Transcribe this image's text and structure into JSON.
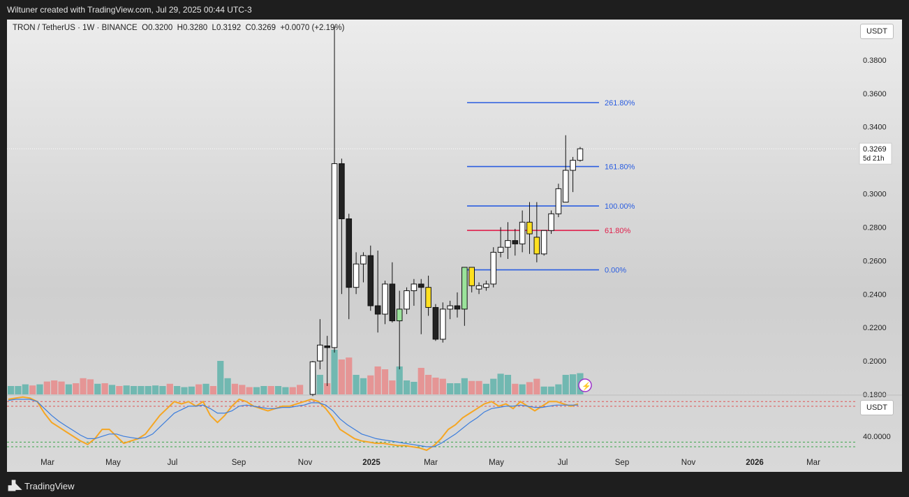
{
  "header": {
    "attribution": "Wiltuner created with TradingView.com, Jul 29, 2025 00:44 UTC-3"
  },
  "legend": {
    "symbol": "TRON / TetherUS · 1W · BINANCE",
    "open_label": "O",
    "open": "0.3200",
    "high_label": "H",
    "high": "0.3280",
    "low_label": "L",
    "low": "0.3192",
    "close_label": "C",
    "close": "0.3269",
    "change": "+0.0070 (+2.19%)"
  },
  "price_axis": {
    "currency": "USDT",
    "last_price": "0.3269",
    "countdown": "5d 21h"
  },
  "rsi_axis": {
    "currency": "USDT",
    "tick": "40.0000"
  },
  "footer": {
    "brand": "TradingView"
  },
  "colors": {
    "bull": "#ffffff",
    "bear": "#222222",
    "highlight_bull_yellow": "#ffe020",
    "highlight_bull_green": "#9be39b",
    "vol_up": "#5fb3aa",
    "vol_down": "#e88a8a",
    "fib_blue": "#2a5de0",
    "fib_red": "#e0204c",
    "rsi": "#f5a623",
    "rsi_ma": "#3b7ddd"
  },
  "chart_data": [
    {
      "type": "candlestick",
      "title": "TRON / TetherUS · 1W · BINANCE",
      "y_range": [
        0.18,
        0.395
      ],
      "y_ticks": [
        "0.3800",
        "0.3600",
        "0.3400",
        "0.3200",
        "0.3000",
        "0.2800",
        "0.2600",
        "0.2400",
        "0.2200",
        "0.2000",
        "0.1800"
      ],
      "x_labels": [
        "Mar",
        "May",
        "Jul",
        "Sep",
        "Nov",
        "2025",
        "Mar",
        "May",
        "Jul",
        "Sep",
        "Nov",
        "2026",
        "Mar"
      ],
      "x_label_bold": [
        "2025",
        "2026"
      ],
      "first_week": "2024-10-21",
      "candles": [
        {
          "o": 0.18,
          "h": 0.2,
          "l": 0.179,
          "c": 0.1995,
          "style": "bull"
        },
        {
          "o": 0.2,
          "h": 0.225,
          "l": 0.195,
          "c": 0.2095,
          "style": "bull"
        },
        {
          "o": 0.209,
          "h": 0.215,
          "l": 0.185,
          "c": 0.208,
          "style": "bear"
        },
        {
          "o": 0.208,
          "h": 0.4,
          "l": 0.205,
          "c": 0.318,
          "style": "bull"
        },
        {
          "o": 0.318,
          "h": 0.321,
          "l": 0.24,
          "c": 0.285,
          "style": "bear"
        },
        {
          "o": 0.285,
          "h": 0.288,
          "l": 0.225,
          "c": 0.244,
          "style": "bear"
        },
        {
          "o": 0.244,
          "h": 0.265,
          "l": 0.24,
          "c": 0.258,
          "style": "bull"
        },
        {
          "o": 0.258,
          "h": 0.265,
          "l": 0.247,
          "c": 0.263,
          "style": "bull"
        },
        {
          "o": 0.263,
          "h": 0.269,
          "l": 0.23,
          "c": 0.233,
          "style": "bear"
        },
        {
          "o": 0.233,
          "h": 0.266,
          "l": 0.217,
          "c": 0.228,
          "style": "bear"
        },
        {
          "o": 0.228,
          "h": 0.248,
          "l": 0.222,
          "c": 0.246,
          "style": "bull"
        },
        {
          "o": 0.246,
          "h": 0.259,
          "l": 0.223,
          "c": 0.224,
          "style": "bear"
        },
        {
          "o": 0.224,
          "h": 0.242,
          "l": 0.195,
          "c": 0.231,
          "style": "green"
        },
        {
          "o": 0.231,
          "h": 0.244,
          "l": 0.228,
          "c": 0.242,
          "style": "bull"
        },
        {
          "o": 0.242,
          "h": 0.249,
          "l": 0.233,
          "c": 0.246,
          "style": "bull"
        },
        {
          "o": 0.246,
          "h": 0.249,
          "l": 0.216,
          "c": 0.244,
          "style": "bear"
        },
        {
          "o": 0.244,
          "h": 0.251,
          "l": 0.227,
          "c": 0.232,
          "style": "yellow"
        },
        {
          "o": 0.232,
          "h": 0.234,
          "l": 0.212,
          "c": 0.213,
          "style": "bear"
        },
        {
          "o": 0.213,
          "h": 0.235,
          "l": 0.211,
          "c": 0.231,
          "style": "bull"
        },
        {
          "o": 0.231,
          "h": 0.236,
          "l": 0.225,
          "c": 0.233,
          "style": "bull"
        },
        {
          "o": 0.233,
          "h": 0.241,
          "l": 0.226,
          "c": 0.231,
          "style": "bear"
        },
        {
          "o": 0.231,
          "h": 0.256,
          "l": 0.221,
          "c": 0.256,
          "style": "green"
        },
        {
          "o": 0.245,
          "h": 0.256,
          "l": 0.241,
          "c": 0.256,
          "style": "yellow"
        },
        {
          "o": 0.243,
          "h": 0.247,
          "l": 0.24,
          "c": 0.245,
          "style": "bull"
        },
        {
          "o": 0.244,
          "h": 0.248,
          "l": 0.242,
          "c": 0.246,
          "style": "bull"
        },
        {
          "o": 0.246,
          "h": 0.268,
          "l": 0.244,
          "c": 0.265,
          "style": "bull"
        },
        {
          "o": 0.265,
          "h": 0.28,
          "l": 0.262,
          "c": 0.268,
          "style": "bull"
        },
        {
          "o": 0.268,
          "h": 0.283,
          "l": 0.261,
          "c": 0.272,
          "style": "bull"
        },
        {
          "o": 0.272,
          "h": 0.279,
          "l": 0.263,
          "c": 0.27,
          "style": "bear"
        },
        {
          "o": 0.27,
          "h": 0.29,
          "l": 0.265,
          "c": 0.283,
          "style": "bull"
        },
        {
          "o": 0.276,
          "h": 0.295,
          "l": 0.264,
          "c": 0.283,
          "style": "yellow"
        },
        {
          "o": 0.264,
          "h": 0.295,
          "l": 0.259,
          "c": 0.274,
          "style": "yellow"
        },
        {
          "o": 0.264,
          "h": 0.278,
          "l": 0.263,
          "c": 0.278,
          "style": "bull"
        },
        {
          "o": 0.278,
          "h": 0.29,
          "l": 0.276,
          "c": 0.288,
          "style": "bull"
        },
        {
          "o": 0.288,
          "h": 0.306,
          "l": 0.286,
          "c": 0.303,
          "style": "bull"
        },
        {
          "o": 0.295,
          "h": 0.335,
          "l": 0.296,
          "c": 0.314,
          "style": "bull"
        },
        {
          "o": 0.314,
          "h": 0.322,
          "l": 0.301,
          "c": 0.32,
          "style": "bull"
        },
        {
          "o": 0.32,
          "h": 0.328,
          "l": 0.3192,
          "c": 0.3269,
          "style": "bull"
        }
      ],
      "volume_left": [
        {
          "v": 0.3,
          "up": true
        },
        {
          "v": 0.3,
          "up": true
        },
        {
          "v": 0.36,
          "up": true
        },
        {
          "v": 0.32,
          "up": false
        },
        {
          "v": 0.36,
          "up": true
        },
        {
          "v": 0.46,
          "up": false
        },
        {
          "v": 0.5,
          "up": false
        },
        {
          "v": 0.46,
          "up": false
        },
        {
          "v": 0.36,
          "up": true
        },
        {
          "v": 0.4,
          "up": false
        },
        {
          "v": 0.58,
          "up": false
        },
        {
          "v": 0.54,
          "up": false
        },
        {
          "v": 0.38,
          "up": true
        },
        {
          "v": 0.4,
          "up": false
        },
        {
          "v": 0.34,
          "up": true
        },
        {
          "v": 0.3,
          "up": false
        },
        {
          "v": 0.32,
          "up": true
        },
        {
          "v": 0.3,
          "up": true
        },
        {
          "v": 0.3,
          "up": true
        },
        {
          "v": 0.3,
          "up": true
        },
        {
          "v": 0.32,
          "up": true
        },
        {
          "v": 0.3,
          "up": true
        },
        {
          "v": 0.38,
          "up": false
        },
        {
          "v": 0.3,
          "up": true
        },
        {
          "v": 0.26,
          "up": true
        },
        {
          "v": 0.28,
          "up": true
        },
        {
          "v": 0.36,
          "up": false
        },
        {
          "v": 0.38,
          "up": true
        },
        {
          "v": 0.3,
          "up": false
        },
        {
          "v": 1.2,
          "up": true
        },
        {
          "v": 0.58,
          "up": true
        },
        {
          "v": 0.38,
          "up": false
        },
        {
          "v": 0.34,
          "up": false
        },
        {
          "v": 0.26,
          "up": false
        },
        {
          "v": 0.26,
          "up": true
        },
        {
          "v": 0.3,
          "up": true
        },
        {
          "v": 0.3,
          "up": false
        },
        {
          "v": 0.3,
          "up": true
        },
        {
          "v": 0.26,
          "up": true
        },
        {
          "v": 0.26,
          "up": false
        },
        {
          "v": 0.34,
          "up": false
        }
      ],
      "volume_main": [
        {
          "v": 0.88,
          "up": true
        },
        {
          "v": 0.7,
          "up": true
        },
        {
          "v": 0.4,
          "up": false
        },
        {
          "v": 1.6,
          "up": true
        },
        {
          "v": 1.25,
          "up": false
        },
        {
          "v": 1.32,
          "up": false
        },
        {
          "v": 0.7,
          "up": true
        },
        {
          "v": 0.58,
          "up": true
        },
        {
          "v": 0.68,
          "up": false
        },
        {
          "v": 1.0,
          "up": false
        },
        {
          "v": 0.9,
          "up": false
        },
        {
          "v": 0.5,
          "up": false
        },
        {
          "v": 1.0,
          "up": true
        },
        {
          "v": 0.5,
          "up": true
        },
        {
          "v": 0.45,
          "up": true
        },
        {
          "v": 0.95,
          "up": false
        },
        {
          "v": 0.7,
          "up": false
        },
        {
          "v": 0.6,
          "up": false
        },
        {
          "v": 0.56,
          "up": false
        },
        {
          "v": 0.4,
          "up": true
        },
        {
          "v": 0.4,
          "up": true
        },
        {
          "v": 0.58,
          "up": true
        },
        {
          "v": 0.48,
          "up": false
        },
        {
          "v": 0.48,
          "up": false
        },
        {
          "v": 0.38,
          "up": true
        },
        {
          "v": 0.56,
          "up": true
        },
        {
          "v": 0.74,
          "up": true
        },
        {
          "v": 0.7,
          "up": true
        },
        {
          "v": 0.38,
          "up": false
        },
        {
          "v": 0.36,
          "up": true
        },
        {
          "v": 0.44,
          "up": false
        },
        {
          "v": 0.56,
          "up": false
        },
        {
          "v": 0.28,
          "up": true
        },
        {
          "v": 0.28,
          "up": true
        },
        {
          "v": 0.36,
          "up": true
        },
        {
          "v": 0.7,
          "up": true
        },
        {
          "v": 0.72,
          "up": true
        },
        {
          "v": 0.76,
          "up": true
        }
      ],
      "fib_levels": [
        {
          "label": "261.80%",
          "price": 0.3545,
          "color": "#2a5de0"
        },
        {
          "label": "161.80%",
          "price": 0.3163,
          "color": "#2a5de0"
        },
        {
          "label": "100.00%",
          "price": 0.2927,
          "color": "#2a5de0"
        },
        {
          "label": "61.80%",
          "price": 0.2781,
          "color": "#e0204c"
        },
        {
          "label": "0.00%",
          "price": 0.2545,
          "color": "#2a5de0"
        }
      ]
    },
    {
      "type": "line",
      "title": "RSI",
      "y_range": [
        25,
        75
      ],
      "y_ticks": [
        "40.0000"
      ],
      "reference_lines": [
        {
          "value": 70,
          "color": "#e05555"
        },
        {
          "value": 66,
          "color": "#e05555"
        },
        {
          "value": 35,
          "color": "#3aa34a"
        },
        {
          "value": 31,
          "color": "#3aa34a"
        }
      ],
      "series": [
        {
          "values": [
            72,
            73,
            74,
            73,
            70,
            60,
            52,
            48,
            44,
            40,
            36,
            33,
            38,
            46,
            46,
            40,
            34,
            36,
            38,
            42,
            50,
            58,
            64,
            70,
            68,
            70,
            66,
            70,
            58,
            52,
            58,
            66,
            72,
            70,
            66,
            64,
            62,
            64,
            66,
            66,
            68,
            70,
            72,
            70,
            64,
            56,
            46,
            42,
            38,
            36,
            35,
            34,
            34,
            33,
            32,
            32,
            31,
            30,
            28,
            32,
            38,
            46,
            50,
            56,
            60,
            64,
            68,
            70,
            66,
            68,
            64,
            70,
            66,
            62,
            66,
            70,
            70,
            68,
            66,
            68
          ]
        },
        {
          "values": [
            71,
            72,
            72,
            72,
            70,
            64,
            58,
            53,
            49,
            45,
            41,
            38,
            38,
            40,
            42,
            42,
            40,
            39,
            38,
            39,
            42,
            48,
            54,
            60,
            63,
            66,
            66,
            67,
            64,
            60,
            60,
            62,
            66,
            67,
            66,
            65,
            64,
            64,
            65,
            65,
            66,
            67,
            69,
            69,
            67,
            62,
            55,
            50,
            46,
            42,
            40,
            38,
            37,
            36,
            35,
            34,
            33,
            32,
            31,
            31,
            34,
            38,
            42,
            47,
            52,
            56,
            61,
            64,
            65,
            66,
            66,
            67,
            66,
            65,
            65,
            66,
            67,
            67,
            67,
            67
          ]
        }
      ]
    }
  ]
}
